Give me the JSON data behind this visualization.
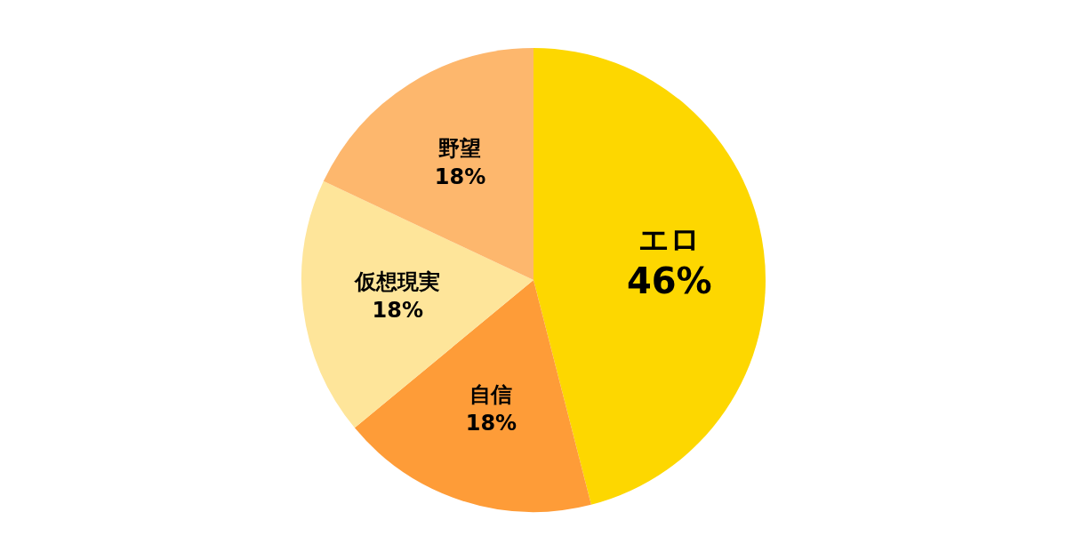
{
  "chart_data": {
    "type": "pie",
    "categories": [
      "エロ",
      "自信",
      "仮想現実",
      "野望"
    ],
    "values": [
      46,
      18,
      18,
      18
    ],
    "colors": [
      "#fdd700",
      "#fe9c38",
      "#fee59a",
      "#fdb76d"
    ],
    "value_labels": [
      "46%",
      "18%",
      "18%",
      "18%"
    ],
    "legend": false
  }
}
